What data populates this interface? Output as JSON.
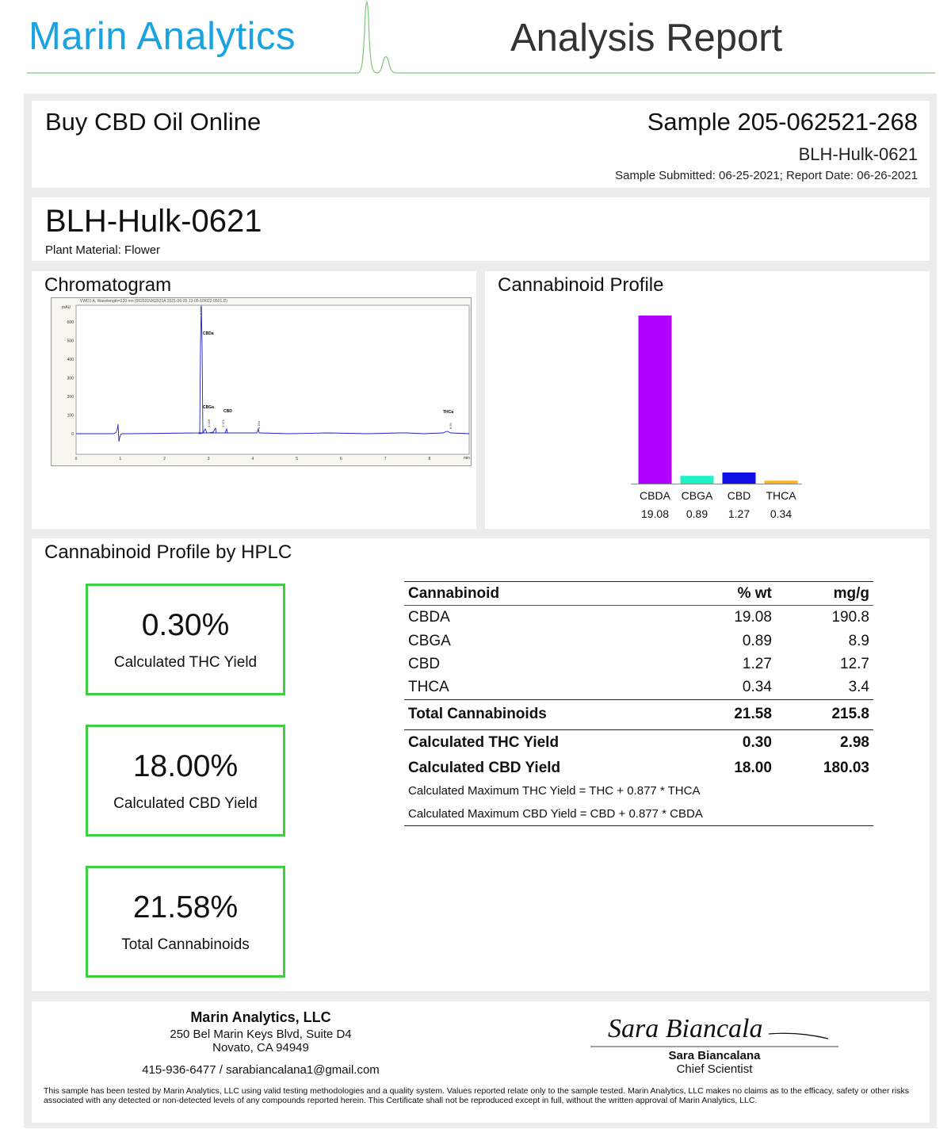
{
  "header": {
    "brand": "Marin Analytics",
    "title": "Analysis Report"
  },
  "client": {
    "name": "Buy CBD Oil Online",
    "sample_label": "Sample 205-062521-268",
    "sample_name": "BLH-Hulk-0621",
    "dates": "Sample Submitted: 06-25-2021;  Report Date: 06-26-2021"
  },
  "strain": {
    "name": "BLH-Hulk-0621",
    "material": "Plant Material: Flower"
  },
  "chromatogram": {
    "title": "Chromatogram",
    "header_text": "VWD1 A, Wavelength=220 nm (062521\\062521A 2021-06-25 13-05-10\\022-0501.D)",
    "unit": "mAU",
    "x_unit": "min",
    "y_ticks": [
      "600",
      "500",
      "400",
      "300",
      "200",
      "100",
      "0"
    ],
    "x_ticks": [
      "0",
      "1",
      "2",
      "3",
      "4",
      "5",
      "6",
      "7",
      "8"
    ],
    "peak_labels": [
      "CBDa",
      "CBGa",
      "CBD",
      "THCa"
    ],
    "retention_labels": [
      "2.786",
      "3.028",
      "3.371",
      "4.164",
      "8.59"
    ]
  },
  "chart_data": {
    "type": "bar",
    "title": "Cannabinoid Profile",
    "categories": [
      "CBDA",
      "CBGA",
      "CBD",
      "THCA"
    ],
    "values": [
      19.08,
      0.89,
      1.27,
      0.34
    ],
    "value_labels": [
      "19.08",
      "0.89",
      "1.27",
      "0.34"
    ],
    "colors": [
      "#b000ff",
      "#1ef2c6",
      "#1010e6",
      "#ffb020"
    ],
    "ylim": [
      0,
      19.08
    ],
    "grid": false
  },
  "hplc": {
    "title": "Cannabinoid Profile by HPLC",
    "boxes": [
      {
        "value": "0.30%",
        "label": "Calculated THC Yield"
      },
      {
        "value": "18.00%",
        "label": "Calculated CBD Yield"
      },
      {
        "value": "21.58%",
        "label": "Total Cannabinoids"
      }
    ],
    "table": {
      "headers": [
        "Cannabinoid",
        "% wt",
        "mg/g"
      ],
      "rows": [
        [
          "CBDA",
          "19.08",
          "190.8"
        ],
        [
          "CBGA",
          "0.89",
          "8.9"
        ],
        [
          "CBD",
          "1.27",
          "12.7"
        ],
        [
          "THCA",
          "0.34",
          "3.4"
        ]
      ],
      "total": [
        "Total Cannabinoids",
        "21.58",
        "215.8"
      ],
      "thc_yield": [
        "Calculated THC Yield",
        "0.30",
        "2.98"
      ],
      "cbd_yield": [
        "Calculated CBD Yield",
        "18.00",
        "180.03"
      ],
      "note1": "Calculated Maximum THC Yield = THC + 0.877 * THCA",
      "note2": "Calculated Maximum CBD Yield = CBD + 0.877 * CBDA"
    }
  },
  "footer": {
    "company": "Marin Analytics, LLC",
    "address1": "250 Bel Marin Keys Blvd, Suite D4",
    "address2": "Novato, CA 94949",
    "contact": "415-936-6477 / sarabiancalana1@gmail.com",
    "signer": "Sara Biancalana",
    "signer_title": "Chief Scientist",
    "signature": "Sara Biancala",
    "disclaimer": "This sample has been tested by Marin Analytics, LLC using valid testing methodologies and a quality system.  Values reported relate only to the sample tested.  Marin Analytics, LLC makes no claims as to the efficacy, safety or other risks associated with any detected or non-detected levels of any compounds reported herein.  This Certificate shall not be reproduced except in full, without the written approval of Marin Analytics, LLC."
  }
}
